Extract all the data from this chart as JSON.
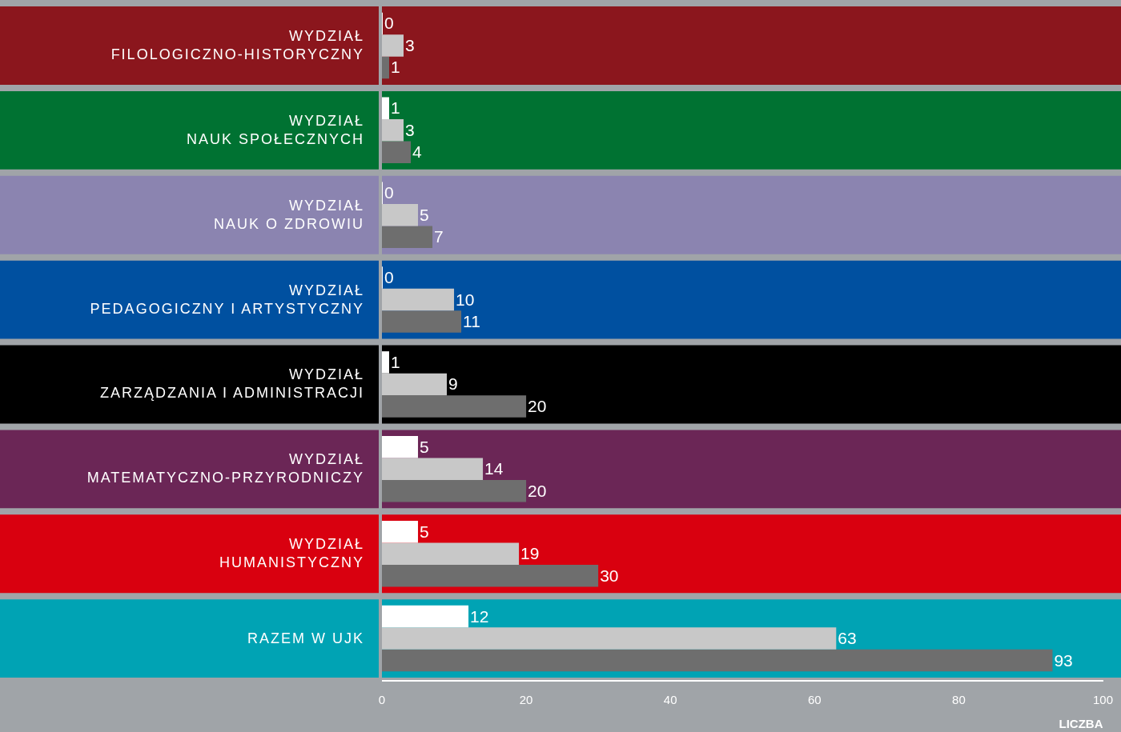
{
  "chart_data": {
    "type": "bar",
    "orientation": "horizontal",
    "categories": [
      "WYDZIAŁ\nFILOLOGICZNO-HISTORYCZNY",
      "WYDZIAŁ\nNAUK SPOŁECZNYCH",
      "WYDZIAŁ\nNAUK O ZDROWIU",
      "WYDZIAŁ\nPEDAGOGICZNY I ARTYSTYCZNY",
      "WYDZIAŁ\nZARZĄDZANIA I ADMINISTRACJI",
      "WYDZIAŁ\nMATEMATYCZNO-PRZYRODNICZY",
      "WYDZIAŁ\nHUMANISTYCZNY",
      "RAZEM W UJK"
    ],
    "series": [
      {
        "color": "#ffffff",
        "values": [
          0,
          1,
          0,
          0,
          1,
          5,
          5,
          12
        ]
      },
      {
        "color": "#c8c8c8",
        "values": [
          3,
          3,
          5,
          10,
          9,
          14,
          19,
          63
        ]
      },
      {
        "color": "#6e6e6e",
        "values": [
          1,
          4,
          7,
          11,
          20,
          20,
          30,
          93
        ]
      }
    ],
    "bands": [
      {
        "axis": "y",
        "from": "WYDZIAŁ\nFILOLOGICZNO-HISTORYCZNY",
        "to": "WYDZIAŁ\nFILOLOGICZNO-HISTORYCZNY",
        "color": "#8b161d"
      },
      {
        "axis": "y",
        "from": "WYDZIAŁ\nNAUK SPOŁECZNYCH",
        "to": "WYDZIAŁ\nNAUK SPOŁECZNYCH",
        "color": "#007232"
      },
      {
        "axis": "y",
        "from": "WYDZIAŁ\nNAUK O ZDROWIU",
        "to": "WYDZIAŁ\nNAUK O ZDROWIU",
        "color": "#8b84b0"
      },
      {
        "axis": "y",
        "from": "WYDZIAŁ\nPEDAGOGICZNY I ARTYSTYCZNY",
        "to": "WYDZIAŁ\nPEDAGOGICZNY I ARTYSTYCZNY",
        "color": "#0050a0"
      },
      {
        "axis": "y",
        "from": "WYDZIAŁ\nZARZĄDZANIA I ADMINISTRACJI",
        "to": "WYDZIAŁ\nZARZĄDZANIA I ADMINISTRACJI",
        "color": "#000000"
      },
      {
        "axis": "y",
        "from": "WYDZIAŁ\nMATEMATYCZNO-PRZYRODNICZY",
        "to": "WYDZIAŁ\nMATEMATYCZNO-PRZYRODNICZY",
        "color": "#6b2656"
      },
      {
        "axis": "y",
        "from": "WYDZIAŁ\nHUMANISTYCZNY",
        "to": "WYDZIAŁ\nHUMANISTYCZNY",
        "color": "#d9000f"
      },
      {
        "axis": "y",
        "from": "RAZEM W UJK",
        "to": "RAZEM W UJK",
        "color": "#00a3b4"
      }
    ],
    "xlabel": "LICZBA",
    "xlim": [
      0,
      100
    ],
    "xticks": [
      0,
      20,
      40,
      60,
      80,
      100
    ],
    "grid": false,
    "legend": false,
    "data_labels": true
  }
}
